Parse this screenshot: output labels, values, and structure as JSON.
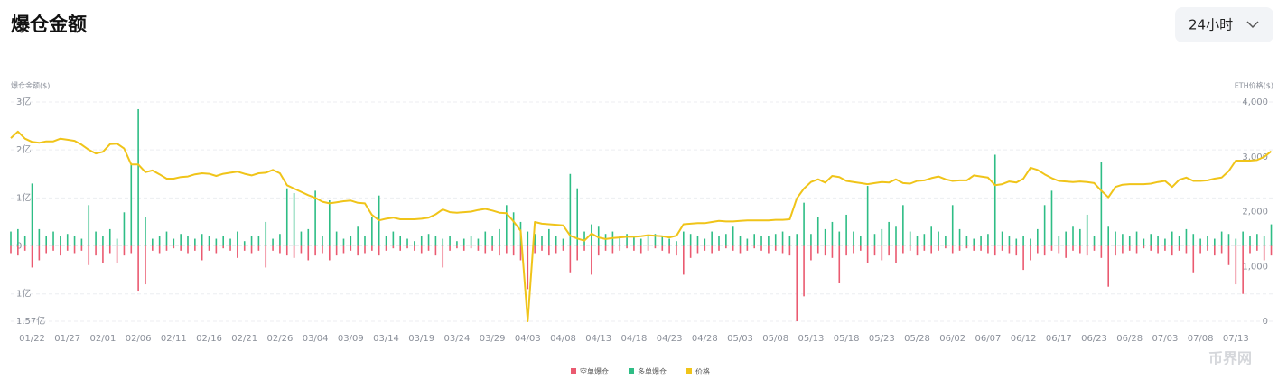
{
  "chart_data": {
    "type": "bar-line",
    "title": "爆仓金额",
    "period": "24小时",
    "ylabel": "爆仓金额($)",
    "y2label": "ETH价格($)",
    "watermark": "币界网",
    "ylim": [
      -1.57,
      3
    ],
    "yticks": [
      {
        "value": 3,
        "label": "3亿"
      },
      {
        "value": 2,
        "label": "2亿"
      },
      {
        "value": 1,
        "label": "1亿"
      },
      0,
      {
        "value": -1,
        "label": "1亿"
      },
      {
        "value": -1.57,
        "label": "1.57亿"
      }
    ],
    "y2lim": [
      0,
      4000
    ],
    "y2ticks": [
      {
        "value": 4000,
        "label": "4,000"
      },
      {
        "value": 3000,
        "label": "3,000"
      },
      {
        "value": 2000,
        "label": "2,000"
      },
      {
        "value": 1000,
        "label": "1,000"
      },
      0
    ],
    "grid": true,
    "categories": [
      null,
      null,
      null,
      "01/22",
      null,
      null,
      null,
      null,
      "01/27",
      null,
      null,
      null,
      null,
      "02/01",
      null,
      null,
      null,
      null,
      "02/06",
      null,
      null,
      null,
      null,
      "02/11",
      null,
      null,
      null,
      null,
      "02/16",
      null,
      null,
      null,
      null,
      "02/21",
      null,
      null,
      null,
      null,
      "02/26",
      null,
      null,
      null,
      null,
      "03/04",
      null,
      null,
      null,
      null,
      "03/09",
      null,
      null,
      null,
      null,
      "03/14",
      null,
      null,
      null,
      null,
      "03/19",
      null,
      null,
      null,
      null,
      "03/24",
      null,
      null,
      null,
      null,
      "03/29",
      null,
      null,
      null,
      null,
      "04/03",
      null,
      null,
      null,
      null,
      "04/08",
      null,
      null,
      null,
      null,
      "04/13",
      null,
      null,
      null,
      null,
      "04/18",
      null,
      null,
      null,
      null,
      "04/23",
      null,
      null,
      null,
      null,
      "04/28",
      null,
      null,
      null,
      null,
      "05/03",
      null,
      null,
      null,
      null,
      "05/08",
      null,
      null,
      null,
      null,
      "05/13",
      null,
      null,
      null,
      null,
      "05/18",
      null,
      null,
      null,
      null,
      "05/23",
      null,
      null,
      null,
      null,
      "05/28",
      null,
      null,
      null,
      null,
      "06/02",
      null,
      null,
      null,
      null,
      "06/07",
      null,
      null,
      null,
      null,
      "06/12",
      null,
      null,
      null,
      null,
      "06/17",
      null,
      null,
      null,
      null,
      "06/23",
      null,
      null,
      null,
      null,
      "06/28",
      null,
      null,
      null,
      null,
      "07/03",
      null,
      null,
      null,
      null,
      "07/08",
      null,
      null,
      null,
      null,
      "07/13",
      null,
      null,
      null,
      null,
      null
    ],
    "series": [
      {
        "name": "空单爆仓",
        "color": "#ea5a70",
        "values": [
          -0.15,
          -0.2,
          -0.1,
          -0.45,
          -0.3,
          -0.15,
          -0.1,
          -0.2,
          -0.1,
          -0.15,
          -0.1,
          -0.4,
          -0.2,
          -0.35,
          -0.15,
          -0.35,
          -0.2,
          -0.15,
          -0.95,
          -0.8,
          -0.1,
          -0.15,
          -0.1,
          -0.05,
          -0.1,
          -0.15,
          -0.1,
          -0.3,
          -0.1,
          -0.15,
          -0.05,
          -0.1,
          -0.25,
          -0.1,
          -0.15,
          -0.1,
          -0.45,
          -0.1,
          -0.15,
          -0.2,
          -0.25,
          -0.15,
          -0.3,
          -0.2,
          -0.15,
          -0.3,
          -0.2,
          -0.15,
          -0.1,
          -0.2,
          -0.15,
          -0.1,
          -0.2,
          -0.1,
          -0.05,
          -0.1,
          -0.05,
          -0.1,
          -0.15,
          -0.1,
          -0.2,
          -0.45,
          -0.1,
          -0.05,
          -0.1,
          -0.05,
          -0.1,
          -0.15,
          -0.1,
          -0.2,
          -0.15,
          -0.2,
          -0.3,
          -0.9,
          -0.15,
          -0.1,
          -0.2,
          -0.15,
          -0.1,
          -0.55,
          -0.3,
          -0.1,
          -0.6,
          -0.2,
          -0.1,
          -0.15,
          -0.1,
          -0.05,
          -0.1,
          -0.15,
          -0.1,
          -0.05,
          -0.1,
          -0.15,
          -0.2,
          -0.6,
          -0.25,
          -0.15,
          -0.1,
          -0.15,
          -0.1,
          -0.05,
          -0.1,
          -0.15,
          -0.1,
          -0.05,
          -0.1,
          -0.15,
          -0.1,
          -0.15,
          -0.2,
          -1.57,
          -1.05,
          -0.3,
          -0.15,
          -0.2,
          -0.25,
          -0.78,
          -0.2,
          -0.15,
          -0.1,
          -0.35,
          -0.2,
          -0.3,
          -0.2,
          -0.35,
          -0.15,
          -0.1,
          -0.2,
          -0.1,
          -0.15,
          -0.1,
          -0.05,
          -0.15,
          -0.1,
          -0.05,
          -0.1,
          -0.1,
          -0.15,
          -0.2,
          -0.1,
          -0.15,
          -0.2,
          -0.5,
          -0.3,
          -0.15,
          -0.2,
          -0.1,
          -0.15,
          -0.25,
          -0.1,
          -0.15,
          -0.2,
          -0.1,
          -0.25,
          -0.85,
          -0.2,
          -0.15,
          -0.1,
          -0.15,
          -0.05,
          -0.1,
          -0.15,
          -0.1,
          -0.2,
          -0.1,
          -0.15,
          -0.55,
          -0.15,
          -0.1,
          -0.2,
          -0.15,
          -0.4,
          -0.8,
          -1.0,
          -0.15,
          -0.1,
          -0.3,
          -0.2
        ]
      },
      {
        "name": "多单爆仓",
        "color": "#2ebd85",
        "values": [
          0.3,
          0.35,
          0.2,
          1.3,
          0.35,
          0.2,
          0.3,
          0.2,
          0.25,
          0.2,
          0.15,
          0.85,
          0.3,
          0.2,
          0.35,
          0.15,
          0.7,
          1.7,
          2.85,
          0.6,
          0.15,
          0.2,
          0.3,
          0.15,
          0.25,
          0.2,
          0.15,
          0.25,
          0.2,
          0.15,
          0.2,
          0.15,
          0.3,
          0.1,
          0.2,
          0.2,
          0.5,
          0.15,
          0.25,
          1.2,
          1.1,
          0.3,
          0.35,
          1.15,
          0.2,
          0.95,
          0.3,
          0.15,
          0.2,
          0.4,
          0.2,
          0.6,
          1.05,
          0.2,
          0.3,
          0.2,
          0.15,
          0.1,
          0.2,
          0.25,
          0.2,
          0.15,
          0.2,
          0.1,
          0.15,
          0.2,
          0.15,
          0.3,
          0.2,
          0.35,
          0.85,
          0.7,
          0.5,
          0.3,
          0.25,
          0.2,
          0.35,
          0.2,
          0.15,
          1.5,
          1.2,
          0.3,
          0.45,
          0.4,
          0.25,
          0.3,
          0.2,
          0.25,
          0.2,
          0.15,
          0.2,
          0.25,
          0.2,
          0.15,
          0.1,
          0.3,
          0.25,
          0.2,
          0.15,
          0.3,
          0.2,
          0.25,
          0.4,
          0.2,
          0.15,
          0.25,
          0.2,
          0.2,
          0.25,
          0.3,
          0.2,
          0.25,
          0.9,
          0.25,
          0.6,
          0.35,
          0.5,
          0.3,
          0.65,
          0.3,
          0.2,
          1.25,
          0.25,
          0.35,
          0.5,
          0.4,
          0.85,
          0.3,
          0.2,
          0.25,
          0.4,
          0.3,
          0.2,
          0.85,
          0.35,
          0.2,
          0.15,
          0.2,
          0.25,
          1.9,
          0.3,
          0.2,
          0.15,
          0.2,
          0.15,
          0.35,
          0.85,
          1.15,
          0.2,
          0.3,
          0.4,
          0.35,
          0.65,
          0.2,
          1.75,
          0.4,
          0.3,
          0.25,
          0.2,
          0.3,
          0.15,
          0.25,
          0.2,
          0.15,
          0.3,
          0.2,
          0.35,
          0.25,
          0.15,
          0.2,
          0.15,
          0.3,
          0.25,
          0.15,
          0.3,
          0.2,
          0.25,
          0.2,
          0.45
        ]
      },
      {
        "name": "价格",
        "color": "#f0c419",
        "axis": "y2",
        "values": [
          3340,
          3460,
          3330,
          3270,
          3255,
          3280,
          3280,
          3330,
          3310,
          3290,
          3220,
          3130,
          3060,
          3090,
          3230,
          3240,
          3150,
          2860,
          2860,
          2720,
          2750,
          2680,
          2600,
          2600,
          2630,
          2640,
          2680,
          2700,
          2690,
          2650,
          2690,
          2710,
          2730,
          2690,
          2660,
          2700,
          2710,
          2760,
          2700,
          2480,
          2420,
          2360,
          2300,
          2250,
          2180,
          2150,
          2170,
          2190,
          2200,
          2160,
          2150,
          1940,
          1840,
          1870,
          1890,
          1860,
          1860,
          1860,
          1870,
          1890,
          1950,
          2040,
          1990,
          1980,
          1990,
          2000,
          2030,
          2050,
          2020,
          1980,
          1970,
          1820,
          1650,
          0,
          1810,
          1780,
          1770,
          1760,
          1750,
          1560,
          1510,
          1470,
          1600,
          1530,
          1500,
          1520,
          1530,
          1540,
          1540,
          1550,
          1570,
          1560,
          1550,
          1530,
          1560,
          1770,
          1780,
          1790,
          1790,
          1810,
          1830,
          1820,
          1820,
          1830,
          1840,
          1840,
          1840,
          1840,
          1850,
          1850,
          1860,
          2240,
          2420,
          2540,
          2590,
          2530,
          2650,
          2630,
          2560,
          2540,
          2520,
          2500,
          2520,
          2540,
          2530,
          2590,
          2520,
          2510,
          2560,
          2570,
          2610,
          2640,
          2590,
          2560,
          2570,
          2570,
          2660,
          2640,
          2620,
          2480,
          2500,
          2550,
          2530,
          2600,
          2800,
          2760,
          2680,
          2610,
          2560,
          2550,
          2540,
          2550,
          2540,
          2520,
          2380,
          2260,
          2450,
          2490,
          2500,
          2500,
          2500,
          2510,
          2540,
          2560,
          2450,
          2580,
          2620,
          2560,
          2560,
          2570,
          2600,
          2620,
          2740,
          2930,
          2930,
          2930,
          2940,
          3000,
          3100
        ]
      }
    ]
  }
}
